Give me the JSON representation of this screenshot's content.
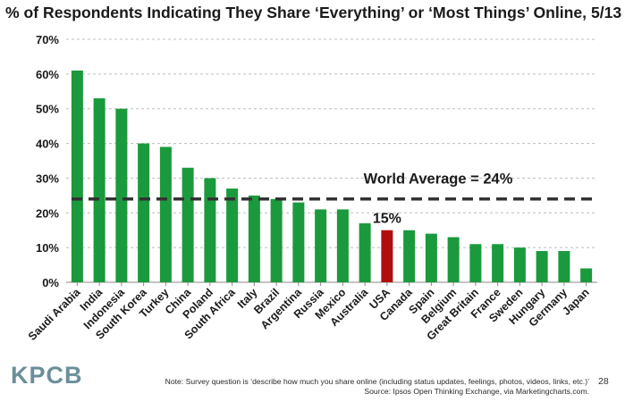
{
  "title": "% of Respondents Indicating They Share ‘Everything’ or ‘Most Things’ Online, 5/13",
  "colors": {
    "bar": "#1a9a3c",
    "highlight": "#b00d0d",
    "average_line": "#333333"
  },
  "chart_data": {
    "type": "bar",
    "categories": [
      "Saudi Arabia",
      "India",
      "Indonesia",
      "South Korea",
      "Turkey",
      "China",
      "Poland",
      "South Africa",
      "Italy",
      "Brazil",
      "Argentina",
      "Russia",
      "Mexico",
      "Australia",
      "USA",
      "Canada",
      "Spain",
      "Belgium",
      "Great Britain",
      "France",
      "Sweden",
      "Hungary",
      "Germany",
      "Japan"
    ],
    "values": [
      61,
      53,
      50,
      40,
      39,
      33,
      30,
      27,
      25,
      24,
      23,
      21,
      21,
      17,
      15,
      15,
      14,
      13,
      11,
      11,
      10,
      9,
      9,
      4
    ],
    "highlight_category": "USA",
    "highlight_label": "15%",
    "average": {
      "value": 24,
      "label": "World Average = 24%"
    },
    "ylim": [
      0,
      70
    ],
    "yticks": [
      "0%",
      "10%",
      "20%",
      "30%",
      "40%",
      "50%",
      "60%",
      "70%"
    ],
    "ytick_values": [
      0,
      10,
      20,
      30,
      40,
      50,
      60,
      70
    ],
    "grid": true,
    "xlabel": "",
    "ylabel": ""
  },
  "footer": {
    "logo": "KPCB",
    "note": "Note: Survey question is ‘describe how much you share online (including status updates, feelings, photos, videos, links, etc.)’",
    "source": "Source: Ipsos Open Thinking Exchange, via Marketingcharts.com.",
    "page_number": "28"
  }
}
